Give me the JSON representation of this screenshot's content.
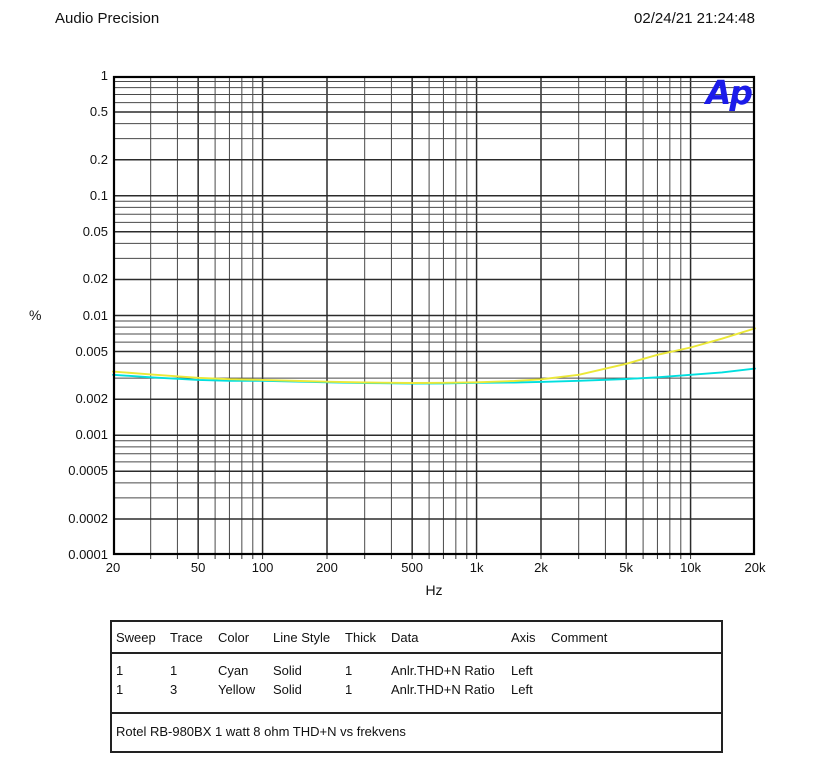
{
  "header": {
    "app_name": "Audio Precision",
    "timestamp": "02/24/21 21:24:48"
  },
  "logo": {
    "text": "Ap",
    "color": "#1b1bea"
  },
  "chart_data": {
    "type": "line",
    "title": "Rotel RB-980BX 1 watt 8 ohm THD+N vs frekvens",
    "xlabel": "Hz",
    "ylabel": "%",
    "x_scale": "log",
    "y_scale": "log",
    "xlim": [
      20,
      20000
    ],
    "ylim": [
      0.0001,
      1
    ],
    "grid": "full log grid, minor lines both axes",
    "legend_position": "table below chart",
    "x_ticks": [
      {
        "v": 20,
        "label": "20"
      },
      {
        "v": 50,
        "label": "50"
      },
      {
        "v": 100,
        "label": "100"
      },
      {
        "v": 200,
        "label": "200"
      },
      {
        "v": 500,
        "label": "500"
      },
      {
        "v": 1000,
        "label": "1k"
      },
      {
        "v": 2000,
        "label": "2k"
      },
      {
        "v": 5000,
        "label": "5k"
      },
      {
        "v": 10000,
        "label": "10k"
      },
      {
        "v": 20000,
        "label": "20k"
      }
    ],
    "y_ticks": [
      {
        "v": 1,
        "label": "1"
      },
      {
        "v": 0.5,
        "label": "0.5"
      },
      {
        "v": 0.2,
        "label": "0.2"
      },
      {
        "v": 0.1,
        "label": "0.1"
      },
      {
        "v": 0.05,
        "label": "0.05"
      },
      {
        "v": 0.02,
        "label": "0.02"
      },
      {
        "v": 0.01,
        "label": "0.01"
      },
      {
        "v": 0.005,
        "label": "0.005"
      },
      {
        "v": 0.002,
        "label": "0.002"
      },
      {
        "v": 0.001,
        "label": "0.001"
      },
      {
        "v": 0.0005,
        "label": "0.0005"
      },
      {
        "v": 0.0002,
        "label": "0.0002"
      },
      {
        "v": 0.0001,
        "label": "0.0001"
      }
    ],
    "series": [
      {
        "name": "Anlr.THD+N Ratio (Sweep 1, Trace 1, Cyan)",
        "color": "#00dfdf",
        "points": [
          [
            20,
            0.0032
          ],
          [
            30,
            0.00305
          ],
          [
            50,
            0.0029
          ],
          [
            70,
            0.00285
          ],
          [
            100,
            0.00285
          ],
          [
            150,
            0.0028
          ],
          [
            200,
            0.00277
          ],
          [
            300,
            0.00273
          ],
          [
            500,
            0.0027
          ],
          [
            700,
            0.00271
          ],
          [
            1000,
            0.00274
          ],
          [
            1500,
            0.00276
          ],
          [
            2000,
            0.00279
          ],
          [
            3000,
            0.00285
          ],
          [
            5000,
            0.00295
          ],
          [
            7000,
            0.00305
          ],
          [
            10000,
            0.0032
          ],
          [
            14000,
            0.00335
          ],
          [
            20000,
            0.0036
          ]
        ]
      },
      {
        "name": "Anlr.THD+N Ratio (Sweep 1, Trace 3, Yellow)",
        "color": "#ebe838",
        "points": [
          [
            20,
            0.0034
          ],
          [
            30,
            0.00322
          ],
          [
            50,
            0.00302
          ],
          [
            70,
            0.00294
          ],
          [
            100,
            0.0029
          ],
          [
            150,
            0.00284
          ],
          [
            200,
            0.0028
          ],
          [
            300,
            0.00276
          ],
          [
            500,
            0.00273
          ],
          [
            700,
            0.00274
          ],
          [
            1000,
            0.00277
          ],
          [
            1500,
            0.00284
          ],
          [
            2000,
            0.00293
          ],
          [
            3000,
            0.0032
          ],
          [
            5000,
            0.00395
          ],
          [
            7000,
            0.0047
          ],
          [
            10000,
            0.0054
          ],
          [
            14000,
            0.0064
          ],
          [
            20000,
            0.0078
          ]
        ]
      }
    ]
  },
  "legend_table": {
    "columns": [
      "Sweep",
      "Trace",
      "Color",
      "Line Style",
      "Thick",
      "Data",
      "Axis",
      "Comment"
    ],
    "rows": [
      [
        "1",
        "1",
        "Cyan",
        "Solid",
        "1",
        "Anlr.THD+N Ratio",
        "Left",
        ""
      ],
      [
        "1",
        "3",
        "Yellow",
        "Solid",
        "1",
        "Anlr.THD+N Ratio",
        "Left",
        ""
      ]
    ],
    "caption": "Rotel RB-980BX 1 watt 8 ohm THD+N vs frekvens"
  }
}
